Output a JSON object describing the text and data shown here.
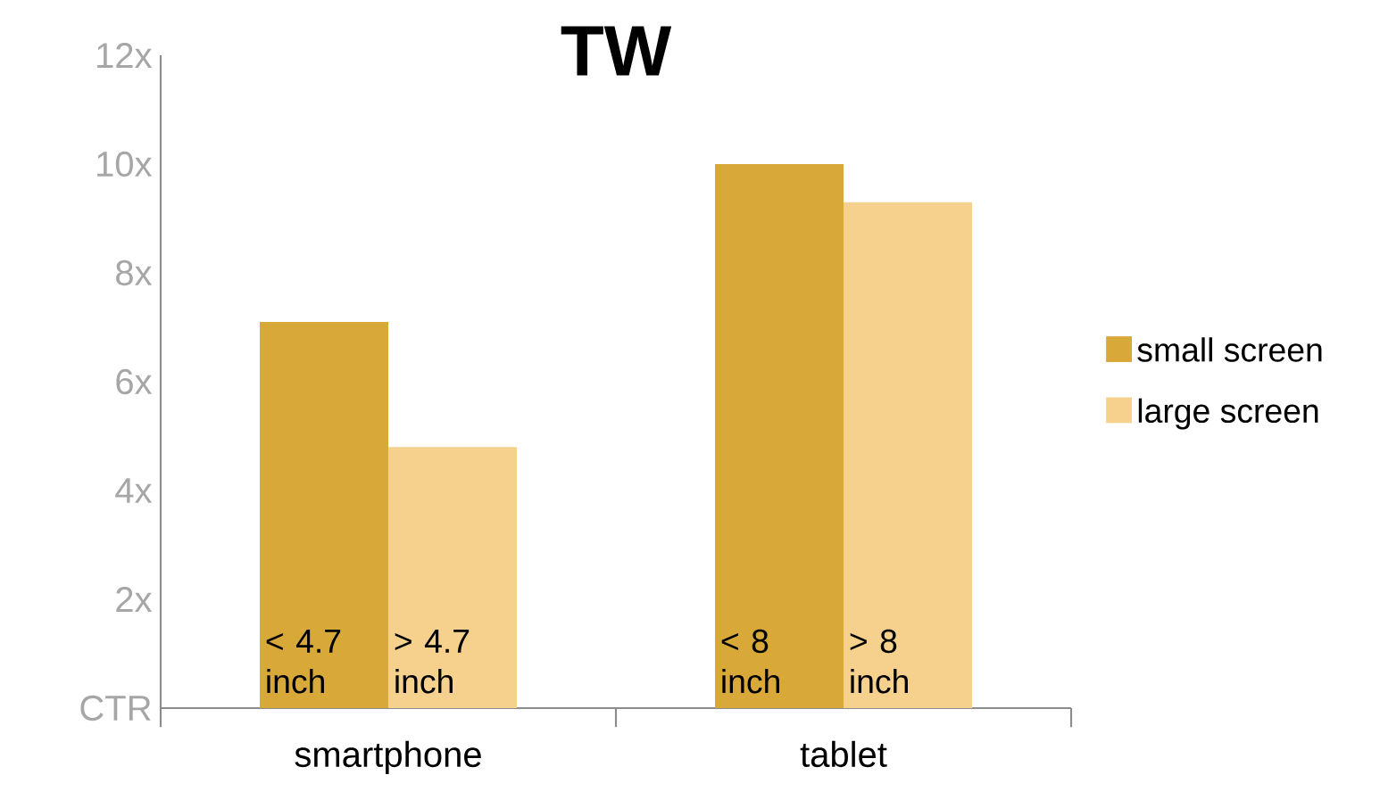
{
  "chart_data": {
    "type": "bar",
    "title": "TW",
    "categories": [
      "smartphone",
      "tablet"
    ],
    "series": [
      {
        "name": "small screen",
        "color": "#d8a939",
        "values": [
          7.1,
          10.0
        ]
      },
      {
        "name": "large screen",
        "color": "#f6d08d",
        "values": [
          4.8,
          9.3
        ]
      }
    ],
    "ylim": [
      0,
      12
    ],
    "yticks": [
      {
        "value": 0,
        "label": "CTR"
      },
      {
        "value": 2,
        "label": "2x"
      },
      {
        "value": 4,
        "label": "4x"
      },
      {
        "value": 6,
        "label": "6x"
      },
      {
        "value": 8,
        "label": "8x"
      },
      {
        "value": 10,
        "label": "10x"
      },
      {
        "value": 12,
        "label": "12x"
      }
    ],
    "annotations": [
      "< 4.7 inch",
      "> 4.7 inch",
      "< 8 inch",
      "> 8 inch"
    ],
    "legend": "right",
    "grid": false
  }
}
